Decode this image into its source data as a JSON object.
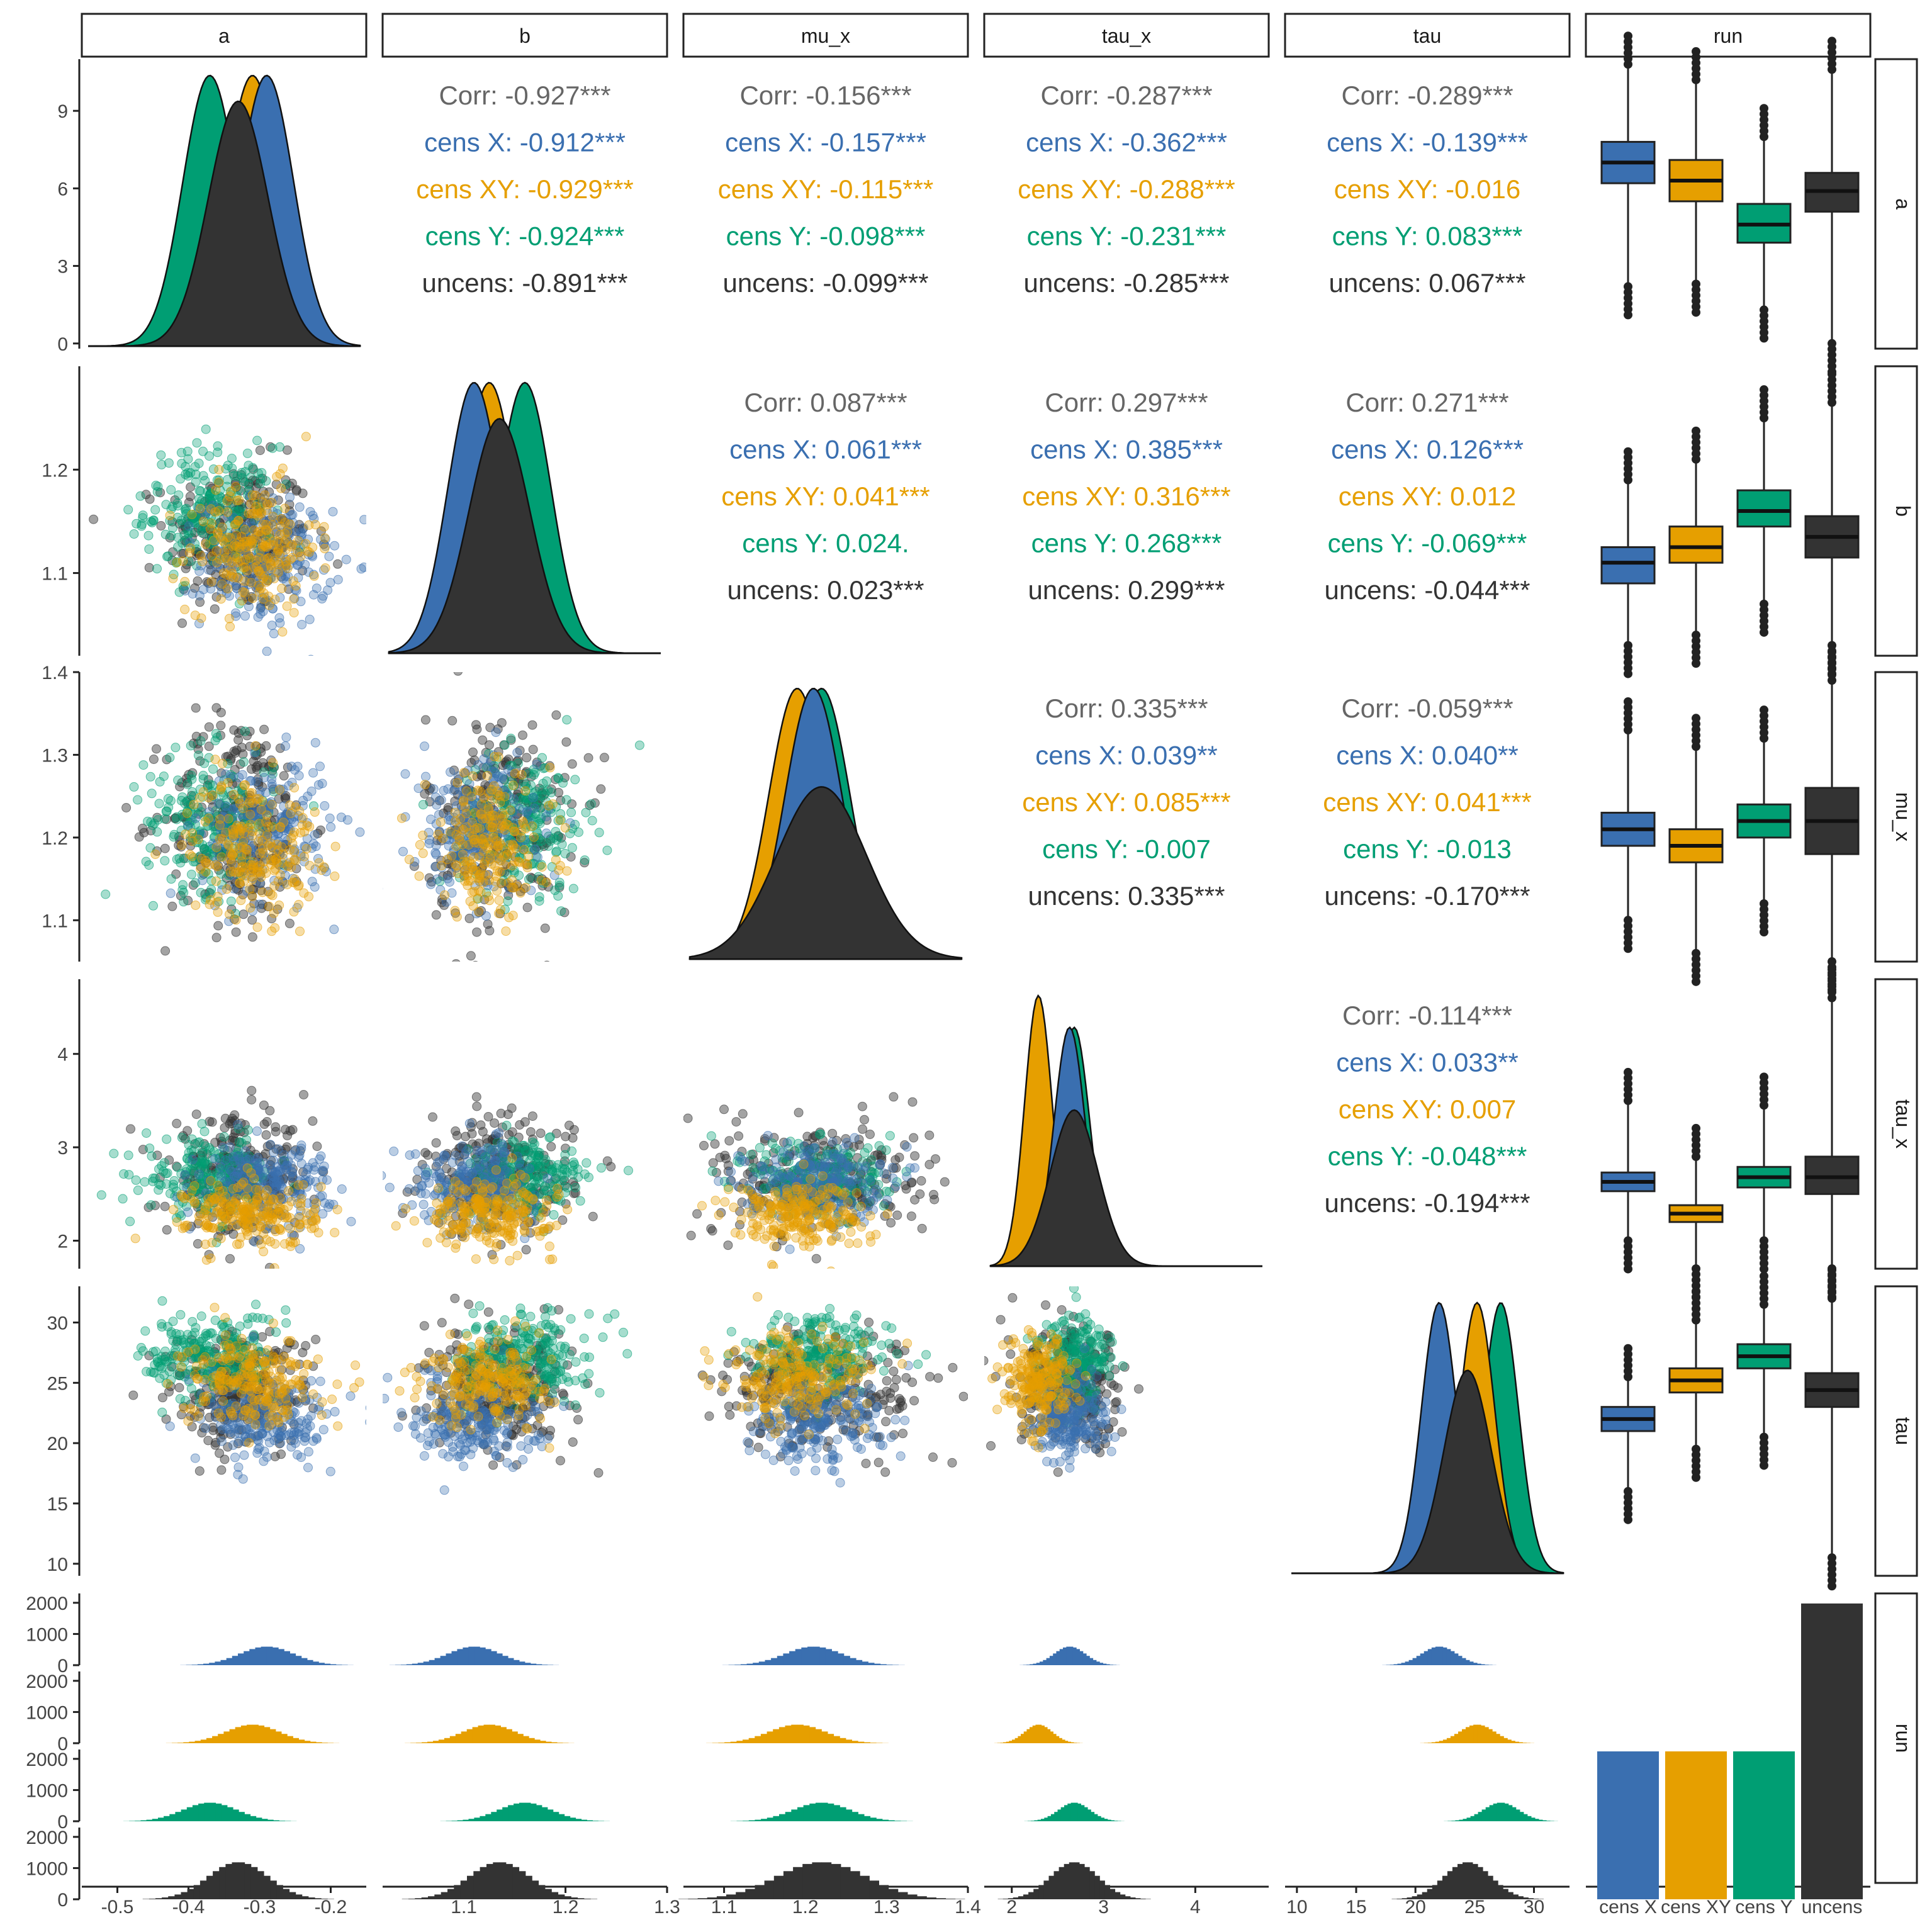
{
  "chart_data": {
    "type": "scatter",
    "variables": [
      "a",
      "b",
      "mu_x",
      "tau_x",
      "tau",
      "run"
    ],
    "groups": [
      {
        "name": "cens X",
        "color": "#3a6fb0"
      },
      {
        "name": "cens XY",
        "color": "#e69f00"
      },
      {
        "name": "cens Y",
        "color": "#009e73"
      },
      {
        "name": "uncens",
        "color": "#333333"
      }
    ],
    "corr_label_color": "#666666",
    "axes": {
      "a": {
        "range": [
          -0.55,
          -0.15
        ],
        "ticks": [
          -0.5,
          -0.4,
          -0.3,
          -0.2
        ],
        "tick_labels": [
          "-0.5",
          "-0.4",
          "-0.3",
          "-0.2"
        ]
      },
      "b": {
        "range": [
          1.02,
          1.3
        ],
        "ticks": [
          1.1,
          1.2,
          1.3
        ],
        "tick_labels": [
          "1.1",
          "1.2",
          "1.3"
        ]
      },
      "mu_x": {
        "range": [
          1.05,
          1.4
        ],
        "ticks": [
          1.1,
          1.2,
          1.3,
          1.4
        ],
        "tick_labels": [
          "1.1",
          "1.2",
          "1.3",
          "1.4"
        ]
      },
      "tau_x": {
        "range": [
          1.7,
          4.8
        ],
        "ticks": [
          2,
          3,
          4
        ],
        "tick_labels": [
          "2",
          "3",
          "4"
        ]
      },
      "tau": {
        "range": [
          9,
          33
        ],
        "ticks": [
          10,
          15,
          20,
          25,
          30
        ],
        "tick_labels": [
          "10",
          "15",
          "20",
          "25",
          "30"
        ]
      }
    },
    "left_axes": {
      "a": {
        "range": [
          -0.2,
          11.0
        ],
        "ticks": [
          0,
          3,
          6,
          9
        ],
        "tick_labels": [
          "0",
          "3",
          "6",
          "9"
        ]
      },
      "b": {
        "range": [
          1.02,
          1.3
        ],
        "ticks": [
          1.1,
          1.2
        ],
        "tick_labels": [
          "1.1",
          "1.2"
        ]
      },
      "mu_x": {
        "range": [
          1.05,
          1.4
        ],
        "ticks": [
          1.1,
          1.2,
          1.3,
          1.4
        ],
        "tick_labels": [
          "1.1",
          "1.2",
          "1.3",
          "1.4"
        ]
      },
      "tau_x": {
        "range": [
          1.7,
          4.8
        ],
        "ticks": [
          2,
          3,
          4
        ],
        "tick_labels": [
          "2",
          "3",
          "4"
        ]
      },
      "tau": {
        "range": [
          9,
          33
        ],
        "ticks": [
          10,
          15,
          20,
          25,
          30
        ],
        "tick_labels": [
          "10",
          "15",
          "20",
          "25",
          "30"
        ]
      },
      "run": {
        "range": [
          0,
          2300
        ],
        "ticks": [
          0,
          1000,
          2000
        ],
        "tick_labels": [
          "0",
          "1000",
          "2000"
        ]
      }
    },
    "marginals": {
      "a": {
        "cens X": {
          "mean": -0.29,
          "sd": 0.038
        },
        "cens XY": {
          "mean": -0.31,
          "sd": 0.038
        },
        "cens Y": {
          "mean": -0.37,
          "sd": 0.038
        },
        "uncens": {
          "mean": -0.33,
          "sd": 0.042
        }
      },
      "b": {
        "cens X": {
          "mean": 1.11,
          "sd": 0.026
        },
        "cens XY": {
          "mean": 1.125,
          "sd": 0.026
        },
        "cens Y": {
          "mean": 1.16,
          "sd": 0.026
        },
        "uncens": {
          "mean": 1.135,
          "sd": 0.03
        }
      },
      "mu_x": {
        "cens X": {
          "mean": 1.21,
          "sd": 0.035
        },
        "cens XY": {
          "mean": 1.19,
          "sd": 0.035
        },
        "cens Y": {
          "mean": 1.22,
          "sd": 0.035
        },
        "uncens": {
          "mean": 1.22,
          "sd": 0.055
        }
      },
      "tau_x": {
        "cens X": {
          "mean": 2.63,
          "sd": 0.17
        },
        "cens XY": {
          "mean": 2.29,
          "sd": 0.15
        },
        "cens Y": {
          "mean": 2.68,
          "sd": 0.17
        },
        "uncens": {
          "mean": 2.68,
          "sd": 0.26
        }
      },
      "tau": {
        "cens X": {
          "mean": 22.0,
          "sd": 1.5
        },
        "cens XY": {
          "mean": 25.2,
          "sd": 1.5
        },
        "cens Y": {
          "mean": 27.2,
          "sd": 1.5
        },
        "uncens": {
          "mean": 24.4,
          "sd": 2.0
        }
      }
    },
    "run_counts": [
      {
        "name": "cens X",
        "value": 1000
      },
      {
        "name": "cens XY",
        "value": 1000
      },
      {
        "name": "cens Y",
        "value": 1000
      },
      {
        "name": "uncens",
        "value": 2000
      }
    ],
    "boxplots": {
      "a": [
        [
          2.2,
          6.2,
          7.0,
          7.8,
          10.8
        ],
        [
          2.3,
          5.5,
          6.3,
          7.1,
          10.2
        ],
        [
          1.3,
          3.9,
          4.6,
          5.4,
          8.0
        ],
        [
          0.0,
          5.1,
          5.9,
          6.6,
          10.6
        ]
      ],
      "b": [
        [
          1.03,
          1.09,
          1.11,
          1.125,
          1.19
        ],
        [
          1.04,
          1.11,
          1.125,
          1.145,
          1.21
        ],
        [
          1.07,
          1.145,
          1.16,
          1.18,
          1.25
        ],
        [
          1.03,
          1.115,
          1.135,
          1.155,
          1.265
        ]
      ],
      "mu_x": [
        [
          1.1,
          1.19,
          1.21,
          1.23,
          1.33
        ],
        [
          1.06,
          1.17,
          1.19,
          1.21,
          1.31
        ],
        [
          1.12,
          1.2,
          1.22,
          1.24,
          1.32
        ],
        [
          1.05,
          1.18,
          1.22,
          1.26,
          1.39
        ]
      ],
      "tau_x": [
        [
          2.0,
          2.53,
          2.63,
          2.73,
          3.5
        ],
        [
          1.7,
          2.2,
          2.29,
          2.38,
          2.9
        ],
        [
          2.0,
          2.57,
          2.68,
          2.79,
          3.45
        ],
        [
          1.7,
          2.5,
          2.68,
          2.9,
          4.6
        ]
      ],
      "tau": [
        [
          16.0,
          21.0,
          22.0,
          23.0,
          25.5
        ],
        [
          19.5,
          24.2,
          25.2,
          26.2,
          30.2
        ],
        [
          20.5,
          26.2,
          27.2,
          28.2,
          31.5
        ],
        [
          10.5,
          23.0,
          24.4,
          25.8,
          32.0
        ]
      ]
    },
    "correlations": [
      {
        "row": "a",
        "col": "b",
        "lines": [
          "Corr: -0.927***",
          "cens X: -0.912***",
          "cens XY: -0.929***",
          "cens Y: -0.924***",
          "uncens: -0.891***"
        ]
      },
      {
        "row": "a",
        "col": "mu_x",
        "lines": [
          "Corr: -0.156***",
          "cens X: -0.157***",
          "cens XY: -0.115***",
          "cens Y: -0.098***",
          "uncens: -0.099***"
        ]
      },
      {
        "row": "a",
        "col": "tau_x",
        "lines": [
          "Corr: -0.287***",
          "cens X: -0.362***",
          "cens XY: -0.288***",
          "cens Y: -0.231***",
          "uncens: -0.285***"
        ]
      },
      {
        "row": "a",
        "col": "tau",
        "lines": [
          "Corr: -0.289***",
          "cens X: -0.139***",
          "cens XY: -0.016",
          "cens Y: 0.083***",
          "uncens: 0.067***"
        ]
      },
      {
        "row": "b",
        "col": "mu_x",
        "lines": [
          "Corr: 0.087***",
          "cens X: 0.061***",
          "cens XY: 0.041***",
          "cens Y: 0.024.",
          "uncens: 0.023***"
        ]
      },
      {
        "row": "b",
        "col": "tau_x",
        "lines": [
          "Corr: 0.297***",
          "cens X: 0.385***",
          "cens XY: 0.316***",
          "cens Y: 0.268***",
          "uncens: 0.299***"
        ]
      },
      {
        "row": "b",
        "col": "tau",
        "lines": [
          "Corr: 0.271***",
          "cens X: 0.126***",
          "cens XY: 0.012",
          "cens Y: -0.069***",
          "uncens: -0.044***"
        ]
      },
      {
        "row": "mu_x",
        "col": "tau_x",
        "lines": [
          "Corr: 0.335***",
          "cens X: 0.039**",
          "cens XY: 0.085***",
          "cens Y: -0.007",
          "uncens: 0.335***"
        ]
      },
      {
        "row": "mu_x",
        "col": "tau",
        "lines": [
          "Corr: -0.059***",
          "cens X: 0.040**",
          "cens XY: 0.041***",
          "cens Y: -0.013",
          "uncens: -0.170***"
        ]
      },
      {
        "row": "tau_x",
        "col": "tau",
        "lines": [
          "Corr: -0.114***",
          "cens X: 0.033**",
          "cens XY: 0.007",
          "cens Y: -0.048***",
          "uncens: -0.194***"
        ]
      }
    ],
    "run_tick_labels": [
      "cens X",
      "cens XY",
      "cens Y",
      "uncens"
    ]
  }
}
